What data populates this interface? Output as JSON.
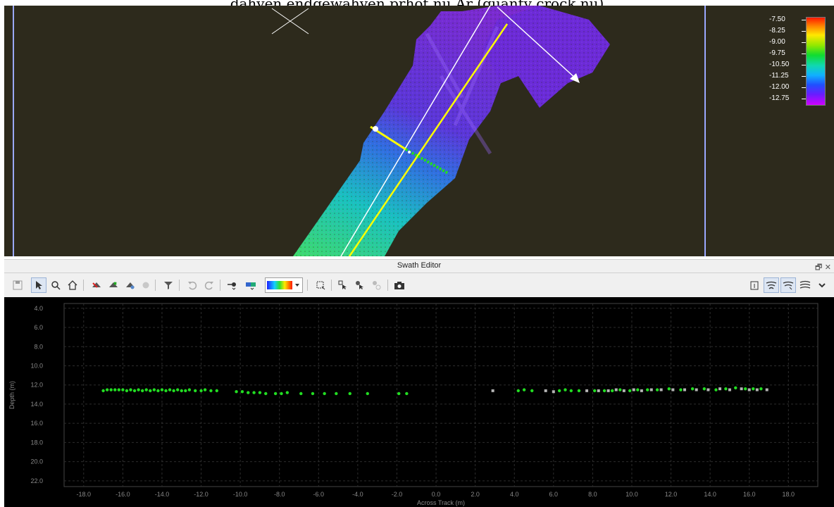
{
  "caption": "dahyen endgewahyen prhot nu Ar (quanty crock nu)",
  "map": {
    "legend": {
      "labels": [
        "-7.50",
        "-8.25",
        "-9.00",
        "-9.75",
        "-10.50",
        "-11.25",
        "-12.00",
        "-12.75"
      ],
      "colors": [
        "#ff1800",
        "#ff8800",
        "#ffe800",
        "#10dc30",
        "#10b0ff",
        "#2050ff",
        "#d000ff"
      ]
    },
    "colors": {
      "background": "#2d2a1c",
      "frame_line": "#9aa8ff",
      "track_line": "#ffff00",
      "guide_line": "#ffffff"
    }
  },
  "swath_editor": {
    "title": "Swath Editor",
    "window_controls": "🗗 ✕",
    "toolbar": {
      "left_tools": [
        "save-icon",
        "pointer-icon",
        "zoom-icon",
        "home-icon",
        "reject-icon",
        "accept-icon",
        "erase-icon",
        "record-icon",
        "filter-icon",
        "undo-icon",
        "redo-icon",
        "point-style-icon",
        "color-mode-icon",
        "color-ramp-icon",
        "select-area-icon",
        "select-cursor-icon",
        "select-global-icon",
        "select-disabled-icon",
        "camera-icon"
      ],
      "right_tools": [
        "export-icon",
        "swath-view-1-icon",
        "swath-view-2-icon",
        "swath-view-3-icon",
        "chevron-down-icon"
      ]
    },
    "chart_data": {
      "type": "scatter",
      "xlabel": "Across Track (m)",
      "ylabel": "Depth (m)",
      "xlim": [
        -19.0,
        19.5
      ],
      "ylim": [
        22.6,
        3.5
      ],
      "x_ticks": [
        "-18.0",
        "-16.0",
        "-14.0",
        "-12.0",
        "-10.0",
        "-8.0",
        "-6.0",
        "-4.0",
        "-2.0",
        "0.0",
        "2.0",
        "4.0",
        "6.0",
        "8.0",
        "10.0",
        "12.0",
        "14.0",
        "16.0",
        "18.0"
      ],
      "x_tick_values": [
        -18,
        -16,
        -14,
        -12,
        -10,
        -8,
        -6,
        -4,
        -2,
        0,
        2,
        4,
        6,
        8,
        10,
        12,
        14,
        16,
        18
      ],
      "y_ticks": [
        "4.0",
        "6.0",
        "8.0",
        "10.0",
        "12.0",
        "14.0",
        "16.0",
        "18.0",
        "20.0",
        "22.0"
      ],
      "y_tick_values": [
        4,
        6,
        8,
        10,
        12,
        14,
        16,
        18,
        20,
        22
      ],
      "grid": true,
      "series": [
        {
          "color": "#22dd22",
          "points": [
            [
              -17.0,
              12.6
            ],
            [
              -16.8,
              12.5
            ],
            [
              -16.6,
              12.5
            ],
            [
              -16.4,
              12.5
            ],
            [
              -16.2,
              12.5
            ],
            [
              -16.0,
              12.5
            ],
            [
              -15.8,
              12.6
            ],
            [
              -15.6,
              12.5
            ],
            [
              -15.4,
              12.6
            ],
            [
              -15.2,
              12.5
            ],
            [
              -15.0,
              12.6
            ],
            [
              -14.8,
              12.5
            ],
            [
              -14.6,
              12.6
            ],
            [
              -14.4,
              12.5
            ],
            [
              -14.2,
              12.6
            ],
            [
              -14.0,
              12.5
            ],
            [
              -13.8,
              12.6
            ],
            [
              -13.6,
              12.5
            ],
            [
              -13.4,
              12.6
            ],
            [
              -13.2,
              12.5
            ],
            [
              -13.0,
              12.6
            ],
            [
              -12.8,
              12.6
            ],
            [
              -12.6,
              12.5
            ],
            [
              -12.3,
              12.6
            ],
            [
              -12.0,
              12.6
            ],
            [
              -11.8,
              12.5
            ],
            [
              -11.5,
              12.6
            ],
            [
              -11.2,
              12.6
            ],
            [
              -10.2,
              12.7
            ],
            [
              -9.9,
              12.7
            ],
            [
              -9.6,
              12.8
            ],
            [
              -9.3,
              12.8
            ],
            [
              -9.0,
              12.8
            ],
            [
              -8.7,
              12.9
            ],
            [
              -8.2,
              12.9
            ],
            [
              -7.9,
              12.9
            ],
            [
              -7.6,
              12.8
            ],
            [
              -6.9,
              12.9
            ],
            [
              -6.3,
              12.9
            ],
            [
              -5.7,
              12.9
            ],
            [
              -5.1,
              12.9
            ],
            [
              -4.4,
              12.9
            ],
            [
              -3.5,
              12.9
            ],
            [
              -1.9,
              12.9
            ],
            [
              -1.5,
              12.9
            ],
            [
              4.2,
              12.6
            ],
            [
              4.5,
              12.5
            ],
            [
              4.9,
              12.6
            ],
            [
              6.3,
              12.6
            ],
            [
              6.6,
              12.5
            ],
            [
              6.9,
              12.6
            ],
            [
              7.3,
              12.6
            ],
            [
              8.1,
              12.6
            ],
            [
              8.6,
              12.6
            ],
            [
              9.0,
              12.6
            ],
            [
              9.4,
              12.5
            ],
            [
              9.9,
              12.6
            ],
            [
              10.3,
              12.5
            ],
            [
              10.8,
              12.5
            ],
            [
              11.3,
              12.5
            ],
            [
              11.9,
              12.4
            ],
            [
              12.5,
              12.5
            ],
            [
              13.1,
              12.4
            ],
            [
              13.7,
              12.4
            ],
            [
              14.3,
              12.5
            ],
            [
              14.8,
              12.4
            ],
            [
              15.3,
              12.3
            ],
            [
              15.8,
              12.4
            ],
            [
              16.2,
              12.4
            ],
            [
              16.6,
              12.4
            ]
          ]
        },
        {
          "color": "#b4b4b4",
          "points": [
            [
              2.9,
              12.6
            ],
            [
              5.6,
              12.6
            ],
            [
              6.0,
              12.7
            ],
            [
              7.7,
              12.6
            ],
            [
              8.3,
              12.6
            ],
            [
              8.8,
              12.6
            ],
            [
              9.2,
              12.5
            ],
            [
              9.6,
              12.6
            ],
            [
              10.1,
              12.5
            ],
            [
              10.5,
              12.6
            ],
            [
              11.0,
              12.5
            ],
            [
              11.5,
              12.5
            ],
            [
              12.1,
              12.5
            ],
            [
              12.7,
              12.5
            ],
            [
              13.3,
              12.5
            ],
            [
              13.9,
              12.5
            ],
            [
              14.5,
              12.4
            ],
            [
              15.0,
              12.5
            ],
            [
              15.6,
              12.4
            ],
            [
              16.0,
              12.5
            ],
            [
              16.4,
              12.5
            ],
            [
              16.9,
              12.5
            ]
          ]
        }
      ]
    }
  }
}
